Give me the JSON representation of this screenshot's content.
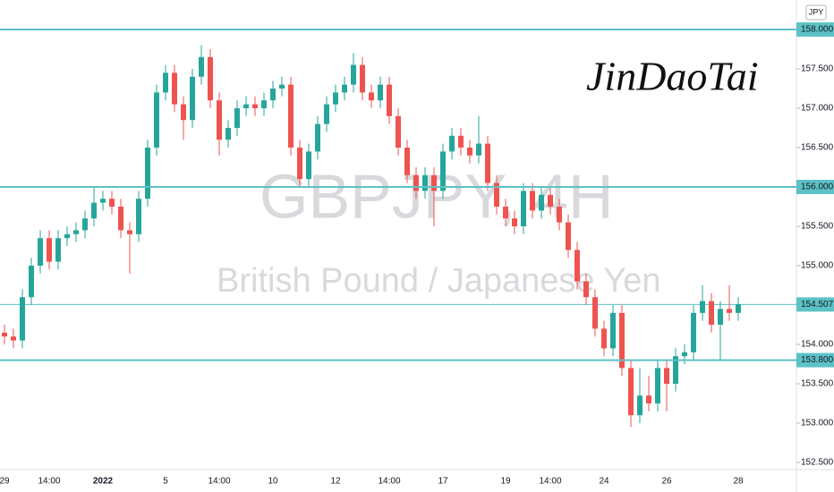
{
  "chart_data": {
    "type": "candlestick",
    "currency": "JPY",
    "watermark_symbol": "GBPJPY, 4H",
    "watermark_name": "British Pound / Japanese Yen",
    "signature": "JinDaoTai",
    "up_color": "#26a69a",
    "down_color": "#ef5350",
    "level_color": "#5cc2c6",
    "categories": [
      "29",
      null,
      null,
      null,
      null,
      "14:00",
      null,
      null,
      null,
      null,
      null,
      "2022",
      null,
      null,
      null,
      null,
      null,
      null,
      "5",
      null,
      null,
      null,
      null,
      null,
      "14:00",
      null,
      null,
      null,
      null,
      null,
      "10",
      null,
      null,
      null,
      null,
      null,
      null,
      "12",
      null,
      null,
      null,
      null,
      null,
      "14:00",
      null,
      null,
      null,
      null,
      null,
      "17",
      null,
      null,
      null,
      null,
      null,
      null,
      "19",
      null,
      null,
      null,
      null,
      "14:00",
      null,
      null,
      null,
      null,
      null,
      "24",
      null,
      null,
      null,
      null,
      null,
      null,
      "26",
      null,
      null,
      null,
      null,
      null,
      null,
      null,
      "28"
    ],
    "open": [
      154.15,
      154.1,
      154.05,
      154.6,
      155.0,
      155.35,
      155.05,
      155.35,
      155.4,
      155.45,
      155.6,
      155.8,
      155.85,
      155.75,
      155.45,
      155.4,
      155.85,
      156.5,
      157.2,
      157.45,
      157.05,
      156.85,
      157.4,
      157.65,
      157.1,
      156.6,
      156.75,
      157.0,
      157.05,
      157.0,
      157.1,
      157.25,
      157.3,
      156.5,
      156.1,
      156.45,
      156.8,
      157.05,
      157.2,
      157.3,
      157.55,
      157.2,
      157.1,
      157.3,
      156.9,
      156.5,
      156.15,
      155.95,
      156.15,
      155.95,
      156.45,
      156.65,
      156.5,
      156.4,
      156.55,
      156.05,
      155.75,
      155.6,
      155.5,
      155.95,
      155.7,
      155.9,
      155.75,
      155.55,
      155.2,
      154.8,
      154.6,
      154.2,
      153.95,
      154.4,
      153.7,
      153.1,
      153.35,
      153.25,
      153.7,
      153.5,
      153.85,
      153.9,
      154.4,
      154.55,
      154.25,
      154.45,
      154.4
    ],
    "high": [
      154.25,
      154.2,
      154.7,
      155.1,
      155.45,
      155.45,
      155.45,
      155.5,
      155.55,
      155.7,
      156.0,
      155.95,
      155.95,
      155.85,
      155.55,
      155.95,
      156.6,
      157.3,
      157.55,
      157.55,
      157.15,
      157.5,
      157.8,
      157.75,
      157.2,
      156.85,
      157.1,
      157.15,
      157.15,
      157.2,
      157.35,
      157.4,
      157.4,
      156.6,
      156.55,
      156.9,
      157.15,
      157.3,
      157.4,
      157.7,
      157.65,
      157.3,
      157.4,
      157.4,
      157.0,
      156.6,
      156.25,
      156.25,
      156.25,
      156.55,
      156.75,
      156.75,
      156.6,
      156.9,
      156.65,
      156.15,
      155.85,
      155.7,
      156.05,
      156.05,
      156.0,
      156.0,
      155.85,
      155.65,
      155.3,
      154.9,
      154.7,
      154.3,
      154.5,
      154.5,
      153.8,
      153.7,
      153.6,
      153.8,
      153.8,
      153.95,
      154.0,
      154.5,
      154.75,
      154.65,
      154.55,
      154.75,
      154.6
    ],
    "low": [
      154.0,
      153.95,
      153.95,
      154.5,
      154.9,
      154.95,
      154.95,
      155.25,
      155.3,
      155.35,
      155.5,
      155.7,
      155.65,
      155.35,
      154.9,
      155.3,
      155.75,
      156.4,
      157.1,
      156.95,
      156.6,
      156.75,
      157.3,
      157.0,
      156.4,
      156.5,
      156.65,
      156.9,
      156.9,
      156.9,
      157.0,
      157.15,
      156.4,
      156.0,
      156.0,
      156.35,
      156.7,
      156.95,
      157.1,
      157.2,
      157.1,
      157.0,
      157.0,
      156.8,
      156.4,
      156.05,
      155.85,
      155.85,
      155.5,
      155.85,
      156.35,
      156.4,
      156.3,
      156.3,
      155.95,
      155.65,
      155.5,
      155.4,
      155.4,
      155.6,
      155.6,
      155.65,
      155.45,
      155.1,
      154.7,
      154.5,
      154.1,
      153.85,
      153.85,
      153.6,
      152.95,
      153.0,
      153.15,
      153.15,
      153.15,
      153.4,
      153.75,
      153.8,
      154.3,
      154.15,
      153.8,
      154.3,
      154.3
    ],
    "close": [
      154.1,
      154.05,
      154.6,
      155.0,
      155.35,
      155.05,
      155.35,
      155.4,
      155.45,
      155.6,
      155.8,
      155.85,
      155.75,
      155.45,
      155.4,
      155.85,
      156.5,
      157.2,
      157.45,
      157.05,
      156.85,
      157.4,
      157.65,
      157.1,
      156.6,
      156.75,
      157.0,
      157.05,
      157.0,
      157.1,
      157.25,
      157.3,
      156.5,
      156.1,
      156.45,
      156.8,
      157.05,
      157.2,
      157.3,
      157.55,
      157.2,
      157.1,
      157.3,
      156.9,
      156.5,
      156.15,
      155.95,
      156.15,
      155.95,
      156.45,
      156.65,
      156.5,
      156.4,
      156.55,
      156.05,
      155.75,
      155.6,
      155.5,
      155.95,
      155.7,
      155.9,
      155.75,
      155.55,
      155.2,
      154.8,
      154.6,
      154.2,
      153.95,
      154.4,
      153.7,
      153.1,
      153.35,
      153.25,
      153.7,
      153.5,
      153.85,
      153.9,
      154.4,
      154.55,
      154.25,
      154.45,
      154.4,
      154.51
    ],
    "ylim": [
      152.409,
      158.375
    ],
    "yticks": [
      {
        "value": 152.5,
        "label": "152.500"
      },
      {
        "value": 153,
        "label": "153.000"
      },
      {
        "value": 153.5,
        "label": "153.500"
      },
      {
        "value": 154,
        "label": "154.000"
      },
      {
        "value": 155,
        "label": "155.000"
      },
      {
        "value": 155.5,
        "label": "155.500"
      },
      {
        "value": 156.5,
        "label": "156.500"
      },
      {
        "value": 157,
        "label": "157.000"
      },
      {
        "value": 157.5,
        "label": "157.500"
      }
    ],
    "levels": [
      {
        "value": 158,
        "label": "158.000"
      },
      {
        "value": 156,
        "label": "156.000"
      },
      {
        "value": 153.8,
        "label": "153.800"
      }
    ],
    "last_price": {
      "value": 154.507,
      "label": "154.507"
    }
  }
}
